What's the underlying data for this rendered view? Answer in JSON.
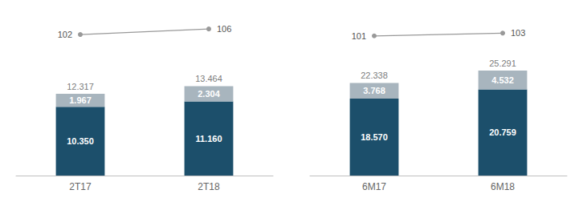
{
  "chart_data": [
    {
      "type": "bar",
      "stacked": true,
      "data_labels": true,
      "grid": false,
      "tick_labels": "x",
      "categories": [
        "2T17",
        "2T18"
      ],
      "ylim": [
        0,
        25
      ],
      "yticks": [
        0,
        5,
        10,
        15,
        20,
        25
      ],
      "y2lim": [
        0,
        120
      ],
      "y2ticks": [
        0,
        20,
        40,
        60,
        80,
        100,
        120
      ],
      "totals": [
        12.317,
        13.464
      ],
      "series": [
        {
          "type": "bar",
          "color": "#1c4f6b",
          "values": [
            10.35,
            11.16
          ],
          "value_labels": [
            "10.350",
            "11.160"
          ]
        },
        {
          "type": "bar",
          "color": "#a8b5be",
          "values": [
            1.967,
            2.304
          ]
        },
        {
          "type": "line",
          "color": "#999999",
          "marker": "circle",
          "axis": "y2",
          "values": [
            102,
            106
          ]
        }
      ]
    },
    {
      "type": "bar",
      "stacked": true,
      "data_labels": true,
      "grid": false,
      "tick_labels": "x",
      "categories": [
        "6M17",
        "6M18"
      ],
      "ylim": [
        0,
        40
      ],
      "yticks": [
        0,
        10,
        20,
        30,
        40
      ],
      "y2lim": [
        0,
        120
      ],
      "y2ticks": [
        0,
        20,
        40,
        60,
        80,
        100,
        120
      ],
      "totals": [
        22.338,
        25.291
      ],
      "series": [
        {
          "type": "bar",
          "color": "#1c4f6b",
          "values": [
            18.57,
            20.759
          ],
          "value_labels": [
            "18.570",
            "20.759"
          ]
        },
        {
          "type": "bar",
          "color": "#a8b5be",
          "values": [
            3.768,
            4.532
          ]
        },
        {
          "type": "line",
          "color": "#999999",
          "marker": "circle",
          "axis": "y2",
          "values": [
            101,
            103
          ]
        }
      ]
    }
  ]
}
